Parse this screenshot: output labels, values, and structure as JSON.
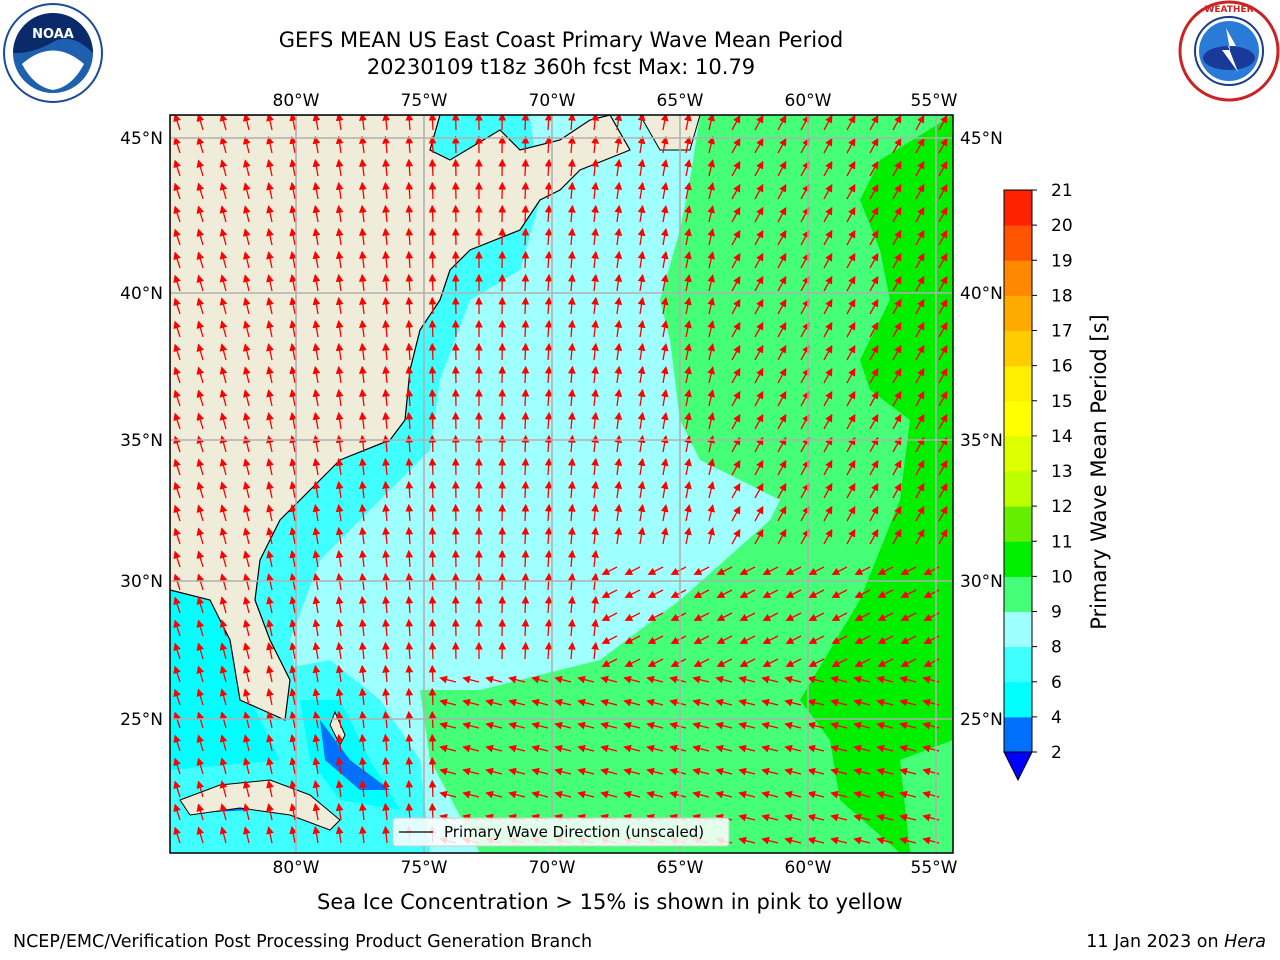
{
  "title": {
    "line1": "GEFS MEAN US East Coast Primary Wave Mean Period",
    "line2": "20230109 t18z 360h fcst   Max: 10.79"
  },
  "map": {
    "lon_ticks": [
      "80°W",
      "75°W",
      "70°W",
      "65°W",
      "60°W",
      "55°W"
    ],
    "lat_ticks": [
      "45°N",
      "40°N",
      "35°N",
      "30°N",
      "25°N"
    ],
    "legend_label": "Primary Wave Direction (unscaled)",
    "arrow_color": "#ff0000",
    "land_color": "#efedda"
  },
  "colorbar": {
    "label": "Primary Wave Mean Period [s]",
    "ticks": [
      "2",
      "4",
      "6",
      "8",
      "9",
      "10",
      "11",
      "12",
      "13",
      "14",
      "15",
      "16",
      "17",
      "18",
      "19",
      "20",
      "21"
    ],
    "colors": [
      "#0070ff",
      "#00ffff",
      "#40ffff",
      "#a0ffff",
      "#44ff77",
      "#00ee00",
      "#66ee00",
      "#bbff00",
      "#ddff00",
      "#ffff00",
      "#ffee00",
      "#ffcc00",
      "#ffaa00",
      "#ff8800",
      "#ff5500",
      "#ff2200",
      "#ff0000"
    ],
    "extend_color": "#0000ff"
  },
  "subtitle": "Sea Ice Concentration > 15% is shown in pink to yellow",
  "footer": {
    "left": "NCEP/EMC/Verification Post Processing Product Generation Branch",
    "date": "11 Jan 2023 on ",
    "host": "Hera"
  },
  "logos": {
    "noaa": "NOAA",
    "nws": "NATIONAL WEATHER SERVICE"
  }
}
